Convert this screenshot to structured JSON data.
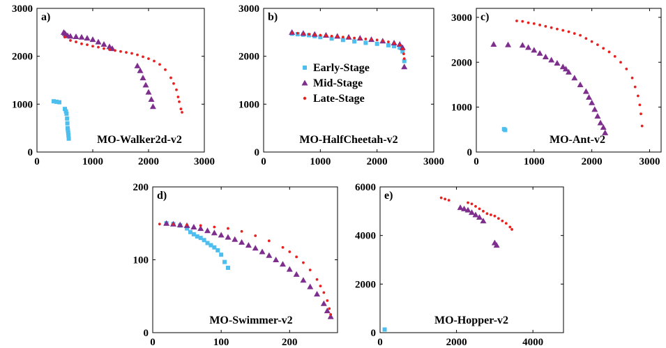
{
  "colors": {
    "early": "#4DBEEE",
    "mid": "#7E2F8E",
    "late": "#E8201F"
  },
  "legend": [
    "Early-Stage",
    "Mid-Stage",
    "Late-Stage"
  ],
  "chart_data": [
    {
      "type": "scatter",
      "panel_label": "a)",
      "title": "MO-Walker2d-v2",
      "xlim": [
        0,
        3000
      ],
      "ylim": [
        0,
        3000
      ],
      "xticks": [
        0,
        1000,
        2000,
        3000
      ],
      "yticks": [
        0,
        1000,
        2000,
        3000
      ],
      "series": [
        {
          "name": "Early-Stage",
          "x": [
            300,
            350,
            400,
            500,
            520,
            530,
            540,
            545,
            550,
            555,
            560,
            565,
            570
          ],
          "y": [
            1060,
            1050,
            1040,
            900,
            850,
            800,
            700,
            600,
            500,
            450,
            400,
            350,
            280
          ]
        },
        {
          "name": "Mid-Stage",
          "x": [
            480,
            500,
            520,
            550,
            600,
            700,
            800,
            900,
            1000,
            1100,
            1200,
            1300,
            1350,
            1800,
            1850,
            1900,
            1950,
            2000,
            2050,
            2080
          ],
          "y": [
            2500,
            2480,
            2450,
            2430,
            2420,
            2410,
            2400,
            2380,
            2350,
            2300,
            2250,
            2200,
            2160,
            1800,
            1700,
            1550,
            1400,
            1250,
            1100,
            950
          ]
        },
        {
          "name": "Late-Stage",
          "x": [
            500,
            600,
            700,
            800,
            900,
            1000,
            1100,
            1200,
            1300,
            1400,
            1500,
            1600,
            1700,
            1800,
            1900,
            2000,
            2100,
            2200,
            2300,
            2400,
            2450,
            2500,
            2530,
            2550,
            2580,
            2600
          ],
          "y": [
            2400,
            2330,
            2300,
            2260,
            2240,
            2210,
            2190,
            2160,
            2140,
            2120,
            2100,
            2080,
            2060,
            2030,
            1990,
            1950,
            1900,
            1830,
            1720,
            1550,
            1430,
            1300,
            1150,
            1050,
            900,
            830
          ]
        }
      ]
    },
    {
      "type": "scatter",
      "panel_label": "b)",
      "title": "MO-HalfCheetah-v2",
      "xlim": [
        0,
        3000
      ],
      "ylim": [
        0,
        3000
      ],
      "xticks": [
        0,
        1000,
        2000,
        3000
      ],
      "yticks": [
        0,
        1000,
        2000,
        3000
      ],
      "legend_position": "center-right",
      "series": [
        {
          "name": "Early-Stage",
          "x": [
            500,
            600,
            700,
            800,
            900,
            1000,
            1200,
            1400,
            1600,
            1800,
            2000,
            2200,
            2300,
            2400,
            2450,
            2480
          ],
          "y": [
            2470,
            2460,
            2450,
            2440,
            2420,
            2400,
            2370,
            2340,
            2310,
            2280,
            2260,
            2230,
            2210,
            2180,
            2100,
            1900
          ]
        },
        {
          "name": "Mid-Stage",
          "x": [
            500,
            700,
            900,
            1100,
            1300,
            1500,
            1700,
            1900,
            2100,
            2300,
            2400,
            2450,
            2480
          ],
          "y": [
            2500,
            2480,
            2460,
            2440,
            2420,
            2400,
            2380,
            2350,
            2320,
            2280,
            2250,
            2180,
            1780
          ]
        },
        {
          "name": "Late-Stage",
          "x": [
            500,
            600,
            700,
            800,
            900,
            1000,
            1100,
            1200,
            1300,
            1400,
            1500,
            1600,
            1700,
            1800,
            1900,
            2000,
            2100,
            2200,
            2300,
            2400,
            2450,
            2470,
            2480
          ],
          "y": [
            2490,
            2480,
            2470,
            2460,
            2450,
            2440,
            2430,
            2420,
            2410,
            2400,
            2390,
            2380,
            2370,
            2360,
            2350,
            2340,
            2320,
            2300,
            2270,
            2230,
            2150,
            2050,
            1950
          ]
        }
      ]
    },
    {
      "type": "scatter",
      "panel_label": "c)",
      "title": "MO-Ant-v2",
      "xlim": [
        0,
        3200
      ],
      "ylim": [
        0,
        3200
      ],
      "xticks": [
        0,
        1000,
        2000,
        3000
      ],
      "yticks": [
        0,
        1000,
        2000,
        3000
      ],
      "series": [
        {
          "name": "Early-Stage",
          "x": [
            480,
            500
          ],
          "y": [
            510,
            490
          ]
        },
        {
          "name": "Mid-Stage",
          "x": [
            300,
            550,
            800,
            900,
            1000,
            1100,
            1200,
            1300,
            1400,
            1500,
            1550,
            1600,
            1700,
            1800,
            1900,
            1950,
            2000,
            2050,
            2100,
            2150,
            2200,
            2230
          ],
          "y": [
            2400,
            2390,
            2380,
            2330,
            2270,
            2200,
            2120,
            2050,
            1980,
            1900,
            1850,
            1780,
            1650,
            1500,
            1350,
            1220,
            1100,
            950,
            800,
            650,
            550,
            430
          ]
        },
        {
          "name": "Late-Stage",
          "x": [
            700,
            800,
            900,
            1000,
            1100,
            1200,
            1300,
            1400,
            1500,
            1600,
            1700,
            1800,
            1900,
            2000,
            2100,
            2200,
            2300,
            2400,
            2500,
            2600,
            2700,
            2750,
            2800,
            2830,
            2850,
            2870
          ],
          "y": [
            2920,
            2910,
            2880,
            2860,
            2830,
            2800,
            2770,
            2740,
            2710,
            2680,
            2640,
            2600,
            2530,
            2460,
            2390,
            2310,
            2230,
            2130,
            2000,
            1850,
            1650,
            1450,
            1250,
            1050,
            850,
            580
          ]
        }
      ]
    },
    {
      "type": "scatter",
      "panel_label": "d)",
      "title": "MO-Swimmer-v2",
      "xlim": [
        0,
        270
      ],
      "ylim": [
        0,
        200
      ],
      "xticks": [
        0,
        100,
        200
      ],
      "yticks": [
        0,
        100,
        200
      ],
      "series": [
        {
          "name": "Early-Stage",
          "x": [
            20,
            30,
            40,
            50,
            55,
            60,
            65,
            70,
            75,
            80,
            85,
            90,
            95,
            100,
            105,
            110
          ],
          "y": [
            150,
            149,
            147,
            143,
            138,
            135,
            132,
            130,
            127,
            123,
            120,
            117,
            113,
            107,
            97,
            89
          ]
        },
        {
          "name": "Mid-Stage",
          "x": [
            20,
            30,
            40,
            50,
            60,
            70,
            80,
            90,
            100,
            110,
            120,
            130,
            140,
            150,
            160,
            170,
            180,
            190,
            200,
            210,
            220,
            230,
            240,
            250,
            255,
            260
          ],
          "y": [
            150,
            149,
            148,
            147,
            145,
            143,
            140,
            137,
            134,
            131,
            128,
            124,
            120,
            116,
            111,
            106,
            100,
            94,
            87,
            80,
            72,
            63,
            53,
            40,
            30,
            22
          ]
        },
        {
          "name": "Late-Stage",
          "x": [
            10,
            30,
            50,
            70,
            90,
            110,
            130,
            150,
            170,
            190,
            200,
            210,
            220,
            230,
            240,
            245,
            250,
            255,
            258,
            260
          ],
          "y": [
            149,
            149,
            148,
            147,
            145,
            143,
            139,
            133,
            126,
            117,
            111,
            104,
            96,
            86,
            73,
            64,
            55,
            44,
            33,
            25
          ]
        }
      ]
    },
    {
      "type": "scatter",
      "panel_label": "e)",
      "title": "MO-Hopper-v2",
      "xlim": [
        0,
        4800
      ],
      "ylim": [
        0,
        6000
      ],
      "xticks": [
        0,
        2000,
        4000
      ],
      "yticks": [
        0,
        2000,
        4000,
        6000
      ],
      "series": [
        {
          "name": "Early-Stage",
          "x": [
            120
          ],
          "y": [
            130
          ]
        },
        {
          "name": "Mid-Stage",
          "x": [
            2100,
            2200,
            2300,
            2400,
            2500,
            2600,
            2700,
            3000,
            3050
          ],
          "y": [
            5150,
            5100,
            5050,
            4950,
            4850,
            4750,
            4600,
            3700,
            3600
          ]
        },
        {
          "name": "Late-Stage",
          "x": [
            1600,
            1700,
            1800,
            2300,
            2400,
            2500,
            2600,
            2700,
            2800,
            2900,
            3000,
            3100,
            3200,
            3300,
            3400,
            3450
          ],
          "y": [
            5550,
            5500,
            5450,
            5350,
            5300,
            5200,
            5100,
            5000,
            4900,
            4850,
            4800,
            4700,
            4600,
            4500,
            4350,
            4250
          ]
        }
      ]
    }
  ]
}
